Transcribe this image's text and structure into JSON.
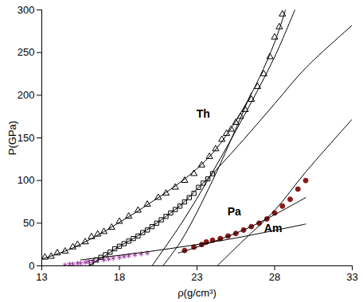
{
  "chart_data": {
    "type": "scatter",
    "x_label": "ρ(g/cm³)",
    "y_label": "P(GPa)",
    "xlim": [
      13,
      33
    ],
    "xticks": [
      13,
      18,
      23,
      28,
      33
    ],
    "ylim": [
      0,
      300
    ],
    "yticks": [
      0,
      50,
      100,
      150,
      200,
      250,
      300
    ],
    "grid": false,
    "series": [
      {
        "type": "scatter",
        "marker": "open_triangle",
        "color": "#000000",
        "x": [
          13.2,
          13.6,
          14,
          14.5,
          15,
          15.3,
          15.8,
          16.2,
          16.6,
          17,
          17.5,
          18,
          18.6,
          19.2,
          19.8,
          20.5,
          21,
          21.6,
          22.2,
          22.8,
          23.3,
          23.8,
          24.2,
          24.6,
          24.9,
          25.2,
          25.5,
          25.8,
          26.1,
          26.5,
          26.9,
          27.3,
          27.7,
          28.0,
          28.3,
          28.5
        ],
        "values": [
          10,
          11,
          15,
          17,
          22,
          25,
          28,
          34,
          37,
          40,
          45,
          52,
          58,
          65,
          72,
          80,
          85,
          92,
          100,
          108,
          118,
          128,
          137,
          148,
          155,
          160,
          168,
          175,
          183,
          195,
          210,
          225,
          245,
          268,
          280,
          295
        ]
      },
      {
        "type": "scatter",
        "marker": "open_square",
        "color": "#000000",
        "x": [
          16.2,
          16.5,
          16.8,
          17.1,
          17.4,
          17.7,
          18,
          18.3,
          18.6,
          18.9,
          19.2,
          19.5,
          19.8,
          20.1,
          20.4,
          20.7,
          21,
          21.3,
          21.6,
          21.9,
          22.2,
          22.5,
          22.8,
          23.1,
          23.4,
          23.7,
          24
        ],
        "values": [
          4,
          7,
          10,
          13,
          16,
          20,
          23,
          26,
          29,
          32,
          35,
          39,
          42,
          46,
          50,
          54,
          58,
          62,
          66,
          70,
          75,
          80,
          85,
          92,
          97,
          102,
          108
        ]
      },
      {
        "type": "scatter",
        "marker": "asterisk",
        "color": "#993399",
        "x": [
          14.5,
          14.8,
          15,
          15.3,
          15.5,
          15.8,
          16,
          16.3,
          16.6,
          17,
          17.3,
          17.6,
          18,
          18.3,
          18.6,
          19,
          19.4,
          19.8
        ],
        "values": [
          1,
          2,
          2,
          3,
          3,
          4,
          5,
          5,
          6,
          7,
          8,
          9,
          10,
          11,
          12,
          13,
          14,
          15
        ]
      },
      {
        "type": "scatter",
        "marker": "filled_circle",
        "color": "#8b1a1a",
        "x": [
          22.2,
          22.8,
          23.3,
          23.6,
          24,
          24.5,
          25,
          25.5,
          26,
          26.5,
          27,
          27.5,
          28,
          28.5,
          29,
          29.5,
          30
        ],
        "values": [
          18,
          22,
          25,
          28,
          30,
          32,
          35,
          38,
          42,
          46,
          50,
          55,
          62,
          70,
          78,
          90,
          100
        ]
      },
      {
        "type": "line",
        "line_style": "solid",
        "color": "#000000",
        "x": [
          13,
          14,
          15,
          16,
          17,
          18,
          19,
          20,
          21,
          22,
          23,
          24,
          25,
          26,
          27,
          28,
          28.7
        ],
        "values": [
          8,
          14,
          21,
          30,
          40,
          51,
          62,
          74,
          86,
          99,
          114,
          132,
          156,
          185,
          220,
          262,
          300
        ]
      },
      {
        "type": "line",
        "line_style": "solid",
        "color": "#000000",
        "x": [
          16,
          17,
          18,
          19,
          20,
          21,
          22,
          23,
          24,
          26,
          28,
          30,
          33
        ],
        "values": [
          0,
          11,
          23,
          33,
          45,
          58,
          72,
          90,
          108,
          148,
          190,
          232,
          282
        ]
      },
      {
        "type": "line",
        "line_style": "solid",
        "color": "#000000",
        "x": [
          20.1,
          22,
          24,
          26,
          28,
          29.3
        ],
        "values": [
          0,
          50,
          110,
          175,
          245,
          300
        ]
      },
      {
        "type": "line",
        "line_style": "solid",
        "color": "#000000",
        "x": [
          20.8,
          22,
          24,
          26.5
        ],
        "values": [
          0,
          30,
          100,
          203
        ]
      },
      {
        "type": "line",
        "line_style": "solid",
        "color": "#000000",
        "x": [
          15.5,
          20,
          25,
          30
        ],
        "values": [
          7,
          17,
          31,
          49
        ]
      },
      {
        "type": "line",
        "line_style": "solid",
        "color": "#000000",
        "x": [
          21.8,
          24,
          26,
          28,
          30
        ],
        "values": [
          15,
          28,
          42,
          60,
          80
        ]
      },
      {
        "type": "line",
        "line_style": "solid",
        "color": "#000000",
        "x": [
          24.3,
          26,
          28,
          30,
          33
        ],
        "values": [
          0,
          30,
          65,
          110,
          172
        ]
      }
    ],
    "annotations": [
      {
        "text": "Th",
        "x": 23.4,
        "y": 178
      },
      {
        "text": "Pa",
        "x": 25.4,
        "y": 63
      },
      {
        "text": "Am",
        "x": 27.9,
        "y": 44
      }
    ]
  }
}
